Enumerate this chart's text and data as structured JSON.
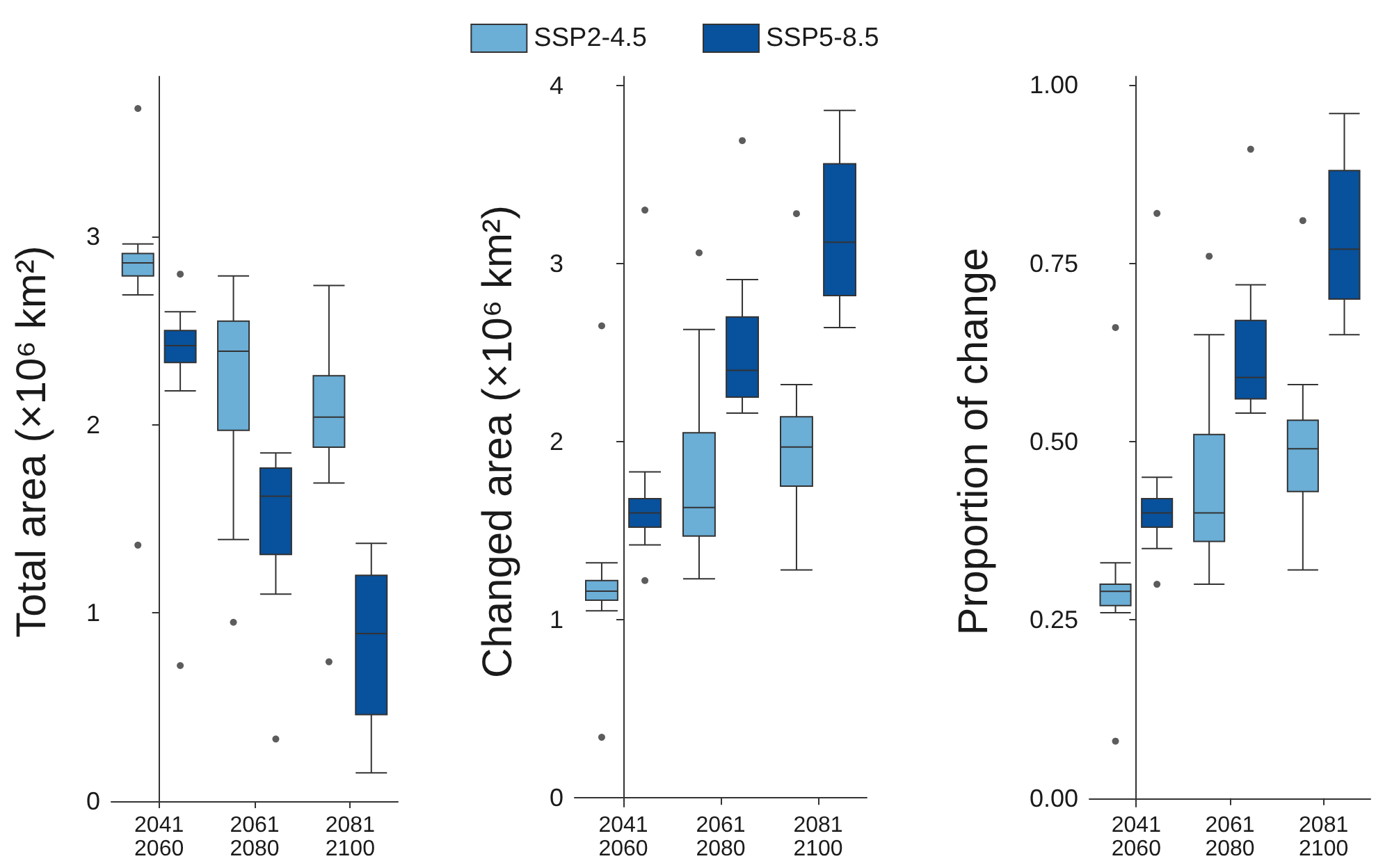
{
  "chart_data": [
    {
      "type": "box",
      "ylabel": "Total area (×10⁶ km²)",
      "categories": [
        "2041\n2060",
        "2061\n2080",
        "2081\n2100"
      ],
      "ylim": [
        -0.03,
        3.85
      ],
      "yticks": [
        0,
        1,
        2,
        3
      ],
      "series": [
        {
          "color": "#6baed6",
          "boxes": [
            {
              "low": 2.69,
              "q1": 2.79,
              "median": 2.86,
              "q3": 2.91,
              "high": 2.96,
              "outliers": [
                3.68,
                1.36
              ]
            },
            {
              "low": 1.39,
              "q1": 1.97,
              "median": 2.39,
              "q3": 2.55,
              "high": 2.79,
              "outliers": [
                0.95
              ]
            },
            {
              "low": 1.69,
              "q1": 1.88,
              "median": 2.04,
              "q3": 2.26,
              "high": 2.74,
              "outliers": [
                0.74
              ]
            }
          ]
        },
        {
          "color": "#08519c",
          "boxes": [
            {
              "low": 2.18,
              "q1": 2.33,
              "median": 2.42,
              "q3": 2.5,
              "high": 2.6,
              "outliers": [
                2.8,
                0.72
              ]
            },
            {
              "low": 1.1,
              "q1": 1.31,
              "median": 1.62,
              "q3": 1.77,
              "high": 1.85,
              "outliers": [
                0.33
              ]
            },
            {
              "low": 0.15,
              "q1": 0.46,
              "median": 0.89,
              "q3": 1.2,
              "high": 1.37
            }
          ]
        }
      ]
    },
    {
      "type": "box",
      "ylabel": "Changed area (×10⁶ km²)",
      "categories": [
        "2041\n2060",
        "2061\n2080",
        "2081\n2100"
      ],
      "ylim": [
        -0.05,
        4.05
      ],
      "yticks": [
        0,
        1,
        2,
        3,
        4
      ],
      "legend": "top",
      "series": [
        {
          "name": "SSP2-4.5",
          "color": "#6baed6",
          "boxes": [
            {
              "low": 1.05,
              "q1": 1.11,
              "median": 1.16,
              "q3": 1.22,
              "high": 1.32,
              "outliers": [
                2.65,
                0.34
              ]
            },
            {
              "low": 1.23,
              "q1": 1.47,
              "median": 1.63,
              "q3": 2.05,
              "high": 2.63,
              "outliers": [
                3.06
              ]
            },
            {
              "low": 1.28,
              "q1": 1.75,
              "median": 1.97,
              "q3": 2.14,
              "high": 2.32,
              "outliers": [
                3.28
              ]
            }
          ]
        },
        {
          "name": "SSP5-8.5",
          "color": "#08519c",
          "boxes": [
            {
              "low": 1.42,
              "q1": 1.52,
              "median": 1.6,
              "q3": 1.68,
              "high": 1.83,
              "outliers": [
                3.3,
                1.22
              ]
            },
            {
              "low": 2.16,
              "q1": 2.25,
              "median": 2.4,
              "q3": 2.7,
              "high": 2.91,
              "outliers": [
                3.69
              ]
            },
            {
              "low": 2.64,
              "q1": 2.82,
              "median": 3.12,
              "q3": 3.56,
              "high": 3.86
            }
          ]
        }
      ]
    },
    {
      "type": "box",
      "ylabel": "Proportion of change",
      "categories": [
        "2041\n2060",
        "2061\n2080",
        "2081\n2100"
      ],
      "ylim": [
        -0.012,
        1.012
      ],
      "yticks": [
        {
          "value": 0,
          "label": "0.00"
        },
        {
          "value": 0.25,
          "label": "0.25"
        },
        {
          "value": 0.5,
          "label": "0.50"
        },
        {
          "value": 0.75,
          "label": "0.75"
        },
        {
          "value": 1,
          "label": "1.00"
        }
      ],
      "series": [
        {
          "color": "#6baed6",
          "boxes": [
            {
              "low": 0.26,
              "q1": 0.27,
              "median": 0.29,
              "q3": 0.3,
              "high": 0.33,
              "outliers": [
                0.66,
                0.08
              ]
            },
            {
              "low": 0.3,
              "q1": 0.36,
              "median": 0.4,
              "q3": 0.51,
              "high": 0.65,
              "outliers": [
                0.76
              ]
            },
            {
              "low": 0.32,
              "q1": 0.43,
              "median": 0.49,
              "q3": 0.53,
              "high": 0.58,
              "outliers": [
                0.81
              ]
            }
          ]
        },
        {
          "color": "#08519c",
          "boxes": [
            {
              "low": 0.35,
              "q1": 0.38,
              "median": 0.4,
              "q3": 0.42,
              "high": 0.45,
              "outliers": [
                0.82,
                0.3
              ]
            },
            {
              "low": 0.54,
              "q1": 0.56,
              "median": 0.59,
              "q3": 0.67,
              "high": 0.72,
              "outliers": [
                0.91
              ]
            },
            {
              "low": 0.65,
              "q1": 0.7,
              "median": 0.77,
              "q3": 0.88,
              "high": 0.96
            }
          ]
        }
      ]
    }
  ]
}
